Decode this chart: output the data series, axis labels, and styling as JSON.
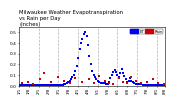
{
  "title": "Milwaukee Weather Evapotranspiration\nvs Rain per Day\n(Inches)",
  "title_fontsize": 3.8,
  "background_color": "#ffffff",
  "plot_bg": "#ffffff",
  "et_color": "#0000ff",
  "rain_color": "#cc0000",
  "legend_et": "ET",
  "legend_rain": "Rain",
  "ylim": [
    0,
    0.55
  ],
  "xlim": [
    0,
    104
  ],
  "ylabel_fontsize": 3.2,
  "xlabel_fontsize": 2.8,
  "yticks": [
    0.0,
    0.1,
    0.2,
    0.3,
    0.4,
    0.5
  ],
  "xtick_positions": [
    0,
    7,
    14,
    21,
    28,
    35,
    42,
    49,
    56,
    63,
    70,
    77,
    84,
    91,
    98,
    104
  ],
  "xtick_labels": [
    "1/1",
    "1/8",
    "2/1",
    "2/8",
    "3/1",
    "3/8",
    "4/1",
    "4/8",
    "5/1",
    "5/8",
    "6/1",
    "6/8",
    "7/1",
    "7/8",
    "8/1",
    "8/8"
  ],
  "et_x": [
    0,
    1,
    2,
    3,
    4,
    5,
    6,
    7,
    8,
    9,
    10,
    11,
    12,
    13,
    14,
    15,
    16,
    17,
    18,
    19,
    20,
    21,
    22,
    23,
    24,
    25,
    26,
    27,
    28,
    29,
    30,
    31,
    32,
    33,
    34,
    35,
    36,
    37,
    38,
    39,
    40,
    41,
    42,
    43,
    44,
    45,
    46,
    47,
    48,
    49,
    50,
    51,
    52,
    53,
    54,
    55,
    56,
    57,
    58,
    59,
    60,
    61,
    62,
    63,
    64,
    65,
    66,
    67,
    68,
    69,
    70,
    71,
    72,
    73,
    74,
    75,
    76,
    77,
    78,
    79,
    80,
    81,
    82,
    83,
    84,
    85,
    86,
    87,
    88,
    89,
    90,
    91,
    92,
    93,
    94,
    95,
    96,
    97,
    98,
    99,
    100,
    101,
    102,
    103
  ],
  "et_y": [
    0.01,
    0.01,
    0.01,
    0.01,
    0.01,
    0.01,
    0.01,
    0.01,
    0.01,
    0.01,
    0.01,
    0.01,
    0.01,
    0.01,
    0.01,
    0.01,
    0.01,
    0.01,
    0.01,
    0.01,
    0.01,
    0.01,
    0.01,
    0.01,
    0.01,
    0.01,
    0.01,
    0.01,
    0.01,
    0.01,
    0.01,
    0.01,
    0.02,
    0.02,
    0.03,
    0.04,
    0.05,
    0.06,
    0.08,
    0.1,
    0.14,
    0.19,
    0.26,
    0.34,
    0.4,
    0.44,
    0.48,
    0.5,
    0.46,
    0.38,
    0.28,
    0.2,
    0.14,
    0.1,
    0.08,
    0.06,
    0.05,
    0.04,
    0.03,
    0.03,
    0.03,
    0.03,
    0.02,
    0.02,
    0.04,
    0.07,
    0.1,
    0.13,
    0.15,
    0.13,
    0.1,
    0.08,
    0.12,
    0.16,
    0.12,
    0.09,
    0.06,
    0.04,
    0.05,
    0.07,
    0.05,
    0.04,
    0.03,
    0.02,
    0.02,
    0.02,
    0.02,
    0.02,
    0.01,
    0.01,
    0.01,
    0.01,
    0.01,
    0.01,
    0.01,
    0.01,
    0.01,
    0.01,
    0.01,
    0.01,
    0.01,
    0.01,
    0.01,
    0.01
  ],
  "rain_x": [
    2,
    6,
    10,
    15,
    18,
    23,
    28,
    32,
    36,
    40,
    45,
    50,
    53,
    57,
    61,
    64,
    67,
    71,
    74,
    77,
    80,
    83,
    87,
    91,
    95,
    99,
    103
  ],
  "rain_y": [
    0.03,
    0.04,
    0.02,
    0.06,
    0.12,
    0.04,
    0.08,
    0.05,
    0.03,
    0.07,
    0.04,
    0.06,
    0.03,
    0.09,
    0.05,
    0.03,
    0.02,
    0.07,
    0.04,
    0.03,
    0.08,
    0.05,
    0.03,
    0.04,
    0.06,
    0.03,
    0.02
  ],
  "vline_positions": [
    14,
    28,
    42,
    56,
    70,
    84,
    98
  ],
  "marker_size": 2.5,
  "dot_marker": "s"
}
